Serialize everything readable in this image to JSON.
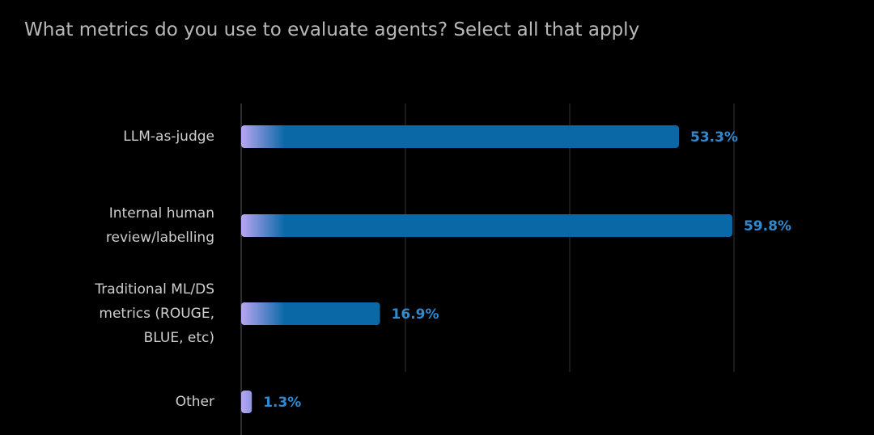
{
  "chart_data": {
    "type": "barh",
    "title": "What metrics do you use to evaluate agents? Select all that apply",
    "categories": [
      "LLM-as-judge",
      "Internal human review/labelling",
      "Traditional ML/DS metrics (ROUGE, BLUE, etc)",
      "Other"
    ],
    "values": [
      53.3,
      59.8,
      16.9,
      1.3
    ],
    "value_labels": [
      "53.3%",
      "59.8%",
      "16.9%",
      "1.3%"
    ],
    "color": "#0a68a6",
    "xlim": [
      0,
      60
    ],
    "xticks": [
      0,
      20,
      40,
      60
    ],
    "grid": true
  }
}
